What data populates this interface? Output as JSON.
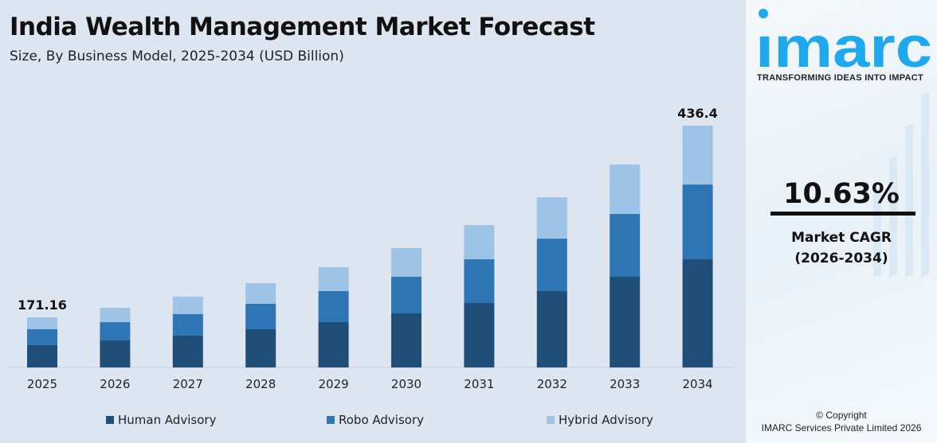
{
  "header": {
    "title": "India Wealth Management Market Forecast",
    "subtitle": "Size, By Business Model, 2025-2034 (USD Billion)"
  },
  "chart_data": {
    "type": "bar",
    "stacked": true,
    "categories": [
      "2025",
      "2026",
      "2027",
      "2028",
      "2029",
      "2030",
      "2031",
      "2032",
      "2033",
      "2034"
    ],
    "series": [
      {
        "name": "Human Advisory",
        "color": "#1f4e79",
        "values": [
          76.1,
          83.5,
          89.8,
          98.9,
          108.8,
          121.0,
          135.2,
          151.3,
          171.0,
          195.2
        ]
      },
      {
        "name": "Robo Advisory",
        "color": "#2e75b6",
        "values": [
          54.3,
          56.5,
          60.6,
          66.0,
          74.4,
          81.8,
          91.8,
          104.0,
          118.5,
          134.9
        ]
      },
      {
        "name": "Hybrid Advisory",
        "color": "#9dc3e6",
        "values": [
          40.8,
          44.3,
          49.4,
          53.6,
          57.3,
          64.1,
          71.8,
          82.0,
          93.0,
          106.3
        ]
      }
    ],
    "data_labels": [
      {
        "category": "2025",
        "text": "171.16"
      },
      {
        "category": "2034",
        "text": "436.4"
      }
    ],
    "grid": false,
    "legend_position": "bottom"
  },
  "sidebar": {
    "logo_text": "imarc",
    "tagline": "TRANSFORMING IDEAS INTO IMPACT",
    "cagr_value": "10.63%",
    "cagr_label": "Market CAGR",
    "cagr_period": "(2026-2034)",
    "copyright": "© Copyright",
    "company": "IMARC Services Private Limited 2026",
    "brand_color": "#1ea8f0"
  }
}
